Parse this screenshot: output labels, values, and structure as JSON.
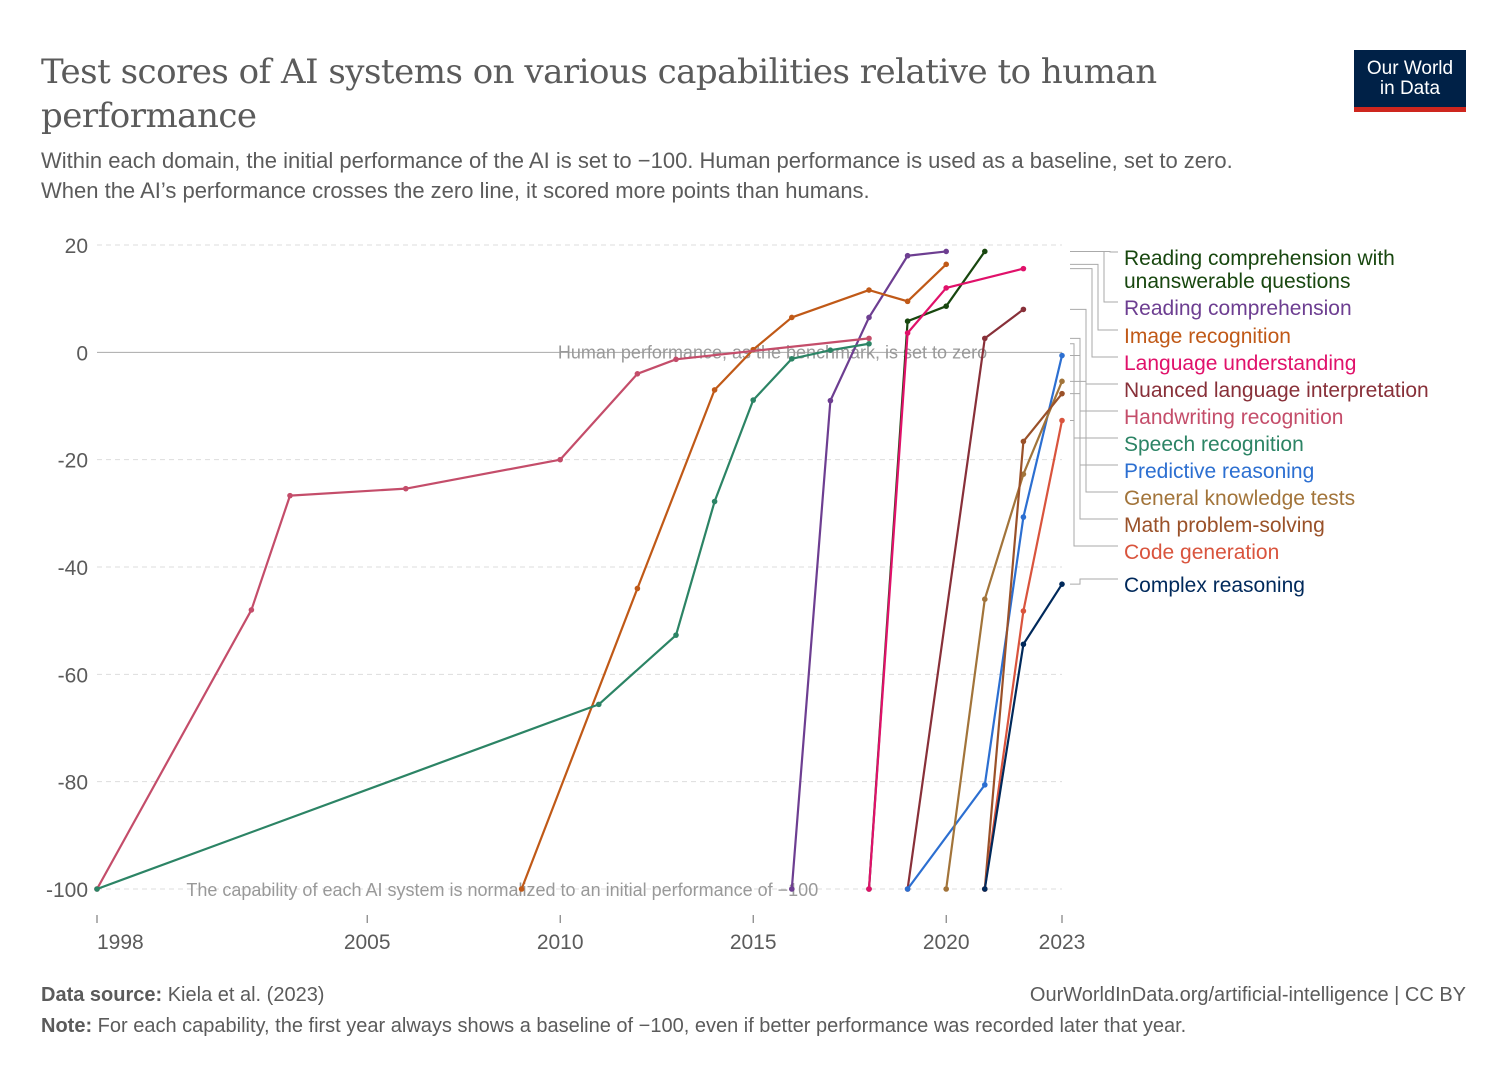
{
  "header": {
    "title": "Test scores of AI systems on various capabilities relative to human performance",
    "subtitle_line1": "Within each domain, the initial performance of the AI is set to −100. Human performance is used as a baseline, set to zero.",
    "subtitle_line2": "When the AI’s performance crosses the zero line, it scored more points than humans.",
    "logo_line1": "Our World",
    "logo_line2": "in Data"
  },
  "footer": {
    "source_label": "Data source:",
    "source_text": " Kiela et al. (2023)",
    "url": "OurWorldInData.org/artificial-intelligence | CC BY",
    "note_label": "Note:",
    "note_text": " For each capability, the first year always shows a baseline of −100, even if better performance was recorded later that year."
  },
  "chart_data": {
    "type": "line",
    "xlim": [
      1998,
      2023
    ],
    "ylim": [
      -100,
      20
    ],
    "x_ticks": [
      1998,
      2005,
      2010,
      2015,
      2020,
      2023
    ],
    "y_ticks": [
      20,
      0,
      -20,
      -40,
      -60,
      -80,
      -100
    ],
    "grid": "horizontal dashed",
    "legend": "right, labels at line ends",
    "annotations": {
      "zero": "Human performance, as the benchmark, is set to zero",
      "baseline": "The capability of each AI system is normalized to an initial performance of −100"
    },
    "series": [
      {
        "name": "Reading comprehension with unanswerable questions",
        "color": "#18470f",
        "x": [
          2018,
          2019,
          2020,
          2021
        ],
        "y": [
          -100,
          5.8,
          8.6,
          18.8
        ]
      },
      {
        "name": "Reading comprehension",
        "color": "#6d3e91",
        "x": [
          2016,
          2017,
          2018,
          2019,
          2020
        ],
        "y": [
          -100,
          -9,
          6.5,
          18,
          18.8
        ]
      },
      {
        "name": "Image recognition",
        "color": "#c05917",
        "x": [
          2009,
          2012,
          2014,
          2015,
          2016,
          2018,
          2019,
          2020
        ],
        "y": [
          -100,
          -44,
          -7,
          0.5,
          6.5,
          11.6,
          9.5,
          16.4
        ]
      },
      {
        "name": "Language understanding",
        "color": "#e0116a",
        "x": [
          2018,
          2019,
          2020,
          2022
        ],
        "y": [
          -100,
          3.6,
          12,
          15.6
        ]
      },
      {
        "name": "Nuanced language interpretation",
        "color": "#883039",
        "x": [
          2019,
          2021,
          2022
        ],
        "y": [
          -100,
          2.6,
          8
        ]
      },
      {
        "name": "Handwriting recognition",
        "color": "#c44d6a",
        "x": [
          1998,
          2002,
          2003,
          2006,
          2010,
          2012,
          2013,
          2018
        ],
        "y": [
          -100,
          -48,
          -26.7,
          -25.4,
          -20,
          -4,
          -1.3,
          2.6
        ]
      },
      {
        "name": "Speech recognition",
        "color": "#2c8465",
        "x": [
          1998,
          2011,
          2013,
          2014,
          2015,
          2016,
          2017,
          2018
        ],
        "y": [
          -100,
          -65.6,
          -52.7,
          -27.8,
          -8.9,
          -1.2,
          0.4,
          1.6
        ]
      },
      {
        "name": "Predictive reasoning",
        "color": "#2c6fd1",
        "x": [
          2019,
          2021,
          2022,
          2023
        ],
        "y": [
          -100,
          -80.6,
          -30.7,
          -0.6
        ]
      },
      {
        "name": "General knowledge tests",
        "color": "#a2743a",
        "x": [
          2020,
          2021,
          2022,
          2023
        ],
        "y": [
          -100,
          -46,
          -22.7,
          -5.4
        ]
      },
      {
        "name": "Math problem-solving",
        "color": "#9a5129",
        "x": [
          2021,
          2022,
          2023
        ],
        "y": [
          -100,
          -16.6,
          -7.7
        ]
      },
      {
        "name": "Code generation",
        "color": "#d9543d",
        "x": [
          2021,
          2022,
          2023
        ],
        "y": [
          -100,
          -48.2,
          -12.7
        ]
      },
      {
        "name": "Complex reasoning",
        "color": "#00295b",
        "x": [
          2021,
          2022,
          2023
        ],
        "y": [
          -100,
          -54.4,
          -43.2
        ]
      }
    ]
  }
}
